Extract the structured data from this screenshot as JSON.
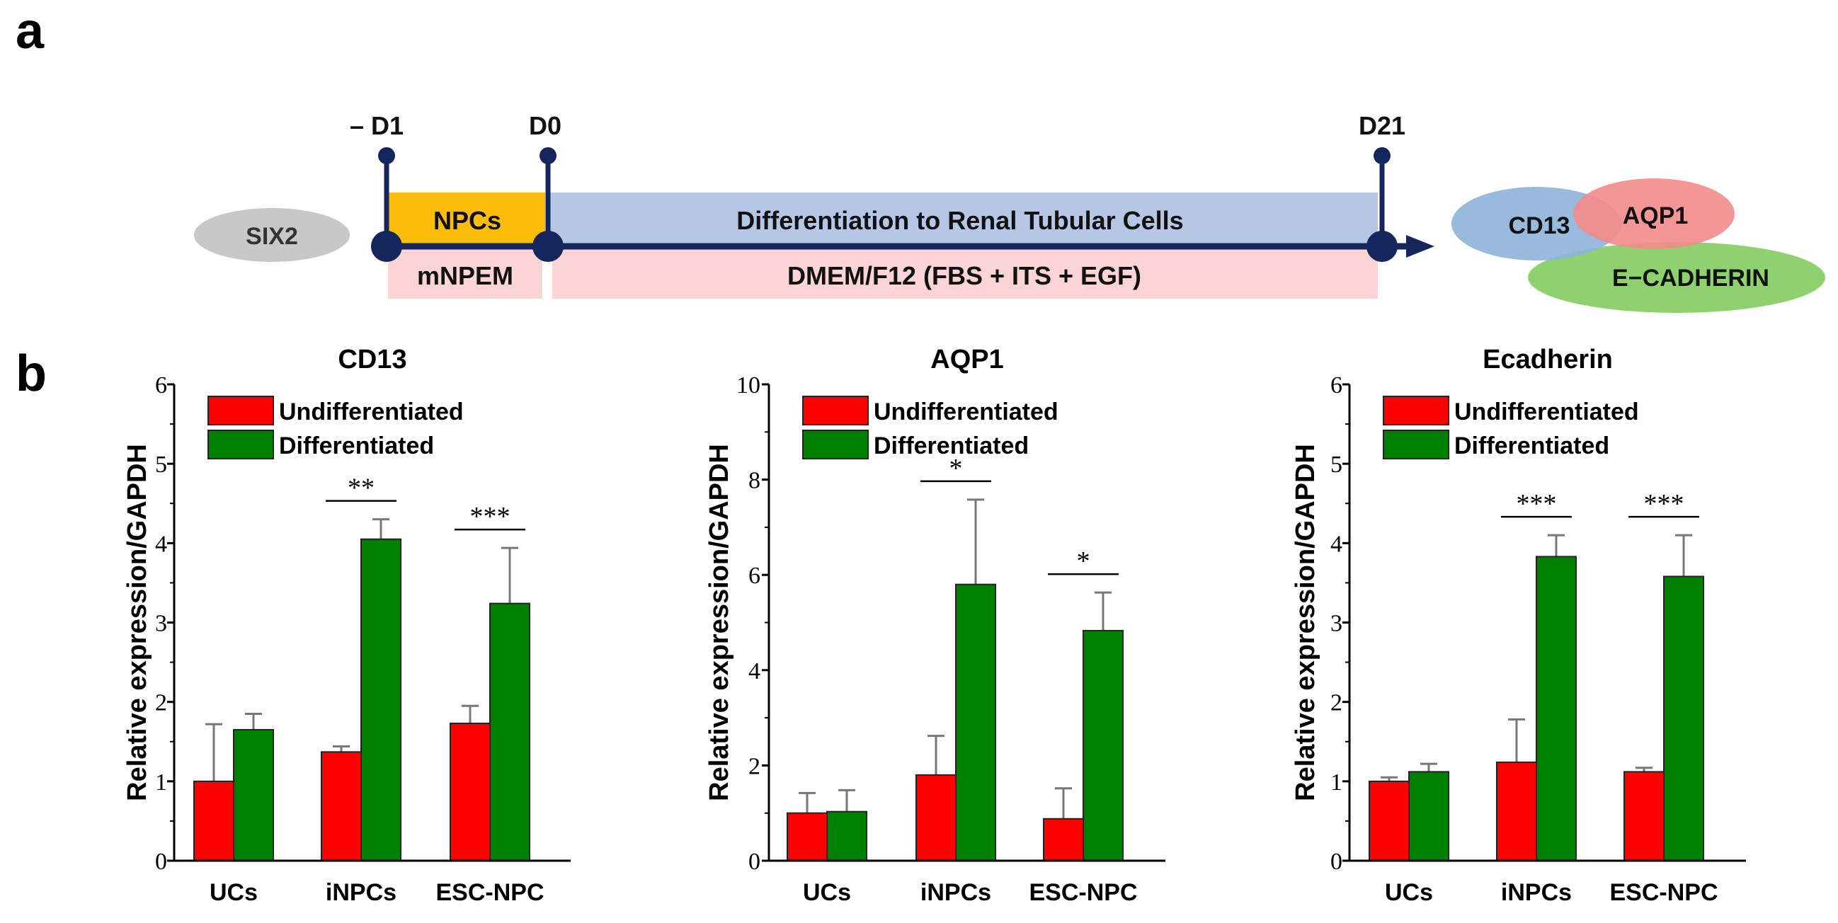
{
  "panel_a_label": "a",
  "panel_b_label": "b",
  "timeline": {
    "markers": [
      "– D1",
      "D0",
      "D21"
    ],
    "marker_label": "SIX2",
    "stage_top": [
      "NPCs",
      "Differentiation to Renal Tubular Cells"
    ],
    "media": [
      "mNPEM",
      "DMEM/F12 (FBS + ITS + EGF)"
    ],
    "markers_out": [
      "CD13",
      "AQP1",
      "E−CADHERIN"
    ]
  },
  "colors": {
    "undiff": "#ff0000",
    "diff": "#008000",
    "navy": "#14265c",
    "npc_box": "#fbbd0c",
    "diff_box": "#b6c7e6",
    "media_box": "#fbd5d5",
    "six2": "#c8c8c8",
    "cd13": "#8fb4da",
    "aqp1": "#f48b8b",
    "ecad": "#8fd16e"
  },
  "chart_data": [
    {
      "type": "bar",
      "title": "CD13",
      "ylabel": "Relative expression/GAPDH",
      "xlabel": "",
      "categories": [
        "UCs",
        "iNPCs",
        "ESC-NPC"
      ],
      "ylim": [
        0,
        6
      ],
      "yticks": [
        "0",
        "1",
        "2",
        "3",
        "4",
        "5",
        "6"
      ],
      "legend": [
        "Undifferentiated",
        "Differentiated"
      ],
      "legend_position": "top-left",
      "series": [
        {
          "name": "Undifferentiated",
          "values": [
            1.0,
            1.37,
            1.73
          ],
          "errors": [
            0.72,
            0.07,
            0.22
          ]
        },
        {
          "name": "Differentiated",
          "values": [
            1.65,
            4.05,
            3.24
          ],
          "errors": [
            0.2,
            0.25,
            0.7
          ]
        }
      ],
      "significance": [
        {
          "category": "iNPCs",
          "label": "**"
        },
        {
          "category": "ESC-NPC",
          "label": "***"
        }
      ]
    },
    {
      "type": "bar",
      "title": "AQP1",
      "ylabel": "Relative expression/GAPDH",
      "xlabel": "",
      "categories": [
        "UCs",
        "iNPCs",
        "ESC-NPC"
      ],
      "ylim": [
        0,
        10
      ],
      "yticks": [
        "0",
        "2",
        "4",
        "6",
        "8",
        "10"
      ],
      "legend": [
        "Undifferentiated",
        "Differentiated"
      ],
      "legend_position": "top-left",
      "series": [
        {
          "name": "Undifferentiated",
          "values": [
            1.0,
            1.8,
            0.88
          ],
          "errors": [
            0.42,
            0.82,
            0.64
          ]
        },
        {
          "name": "Differentiated",
          "values": [
            1.03,
            5.8,
            4.83
          ],
          "errors": [
            0.45,
            1.78,
            0.8
          ]
        }
      ],
      "significance": [
        {
          "category": "iNPCs",
          "label": "*"
        },
        {
          "category": "ESC-NPC",
          "label": "*"
        }
      ]
    },
    {
      "type": "bar",
      "title": "Ecadherin",
      "ylabel": "Relative expression/GAPDH",
      "xlabel": "",
      "categories": [
        "UCs",
        "iNPCs",
        "ESC-NPC"
      ],
      "ylim": [
        0,
        6
      ],
      "yticks": [
        "0",
        "1",
        "2",
        "3",
        "4",
        "5",
        "6"
      ],
      "legend": [
        "Undifferentiated",
        "Differentiated"
      ],
      "legend_position": "top-left",
      "series": [
        {
          "name": "Undifferentiated",
          "values": [
            1.0,
            1.24,
            1.12
          ],
          "errors": [
            0.05,
            0.54,
            0.05
          ]
        },
        {
          "name": "Differentiated",
          "values": [
            1.12,
            3.83,
            3.58
          ],
          "errors": [
            0.1,
            0.27,
            0.52
          ]
        }
      ],
      "significance": [
        {
          "category": "iNPCs",
          "label": "***"
        },
        {
          "category": "ESC-NPC",
          "label": "***"
        }
      ]
    }
  ]
}
